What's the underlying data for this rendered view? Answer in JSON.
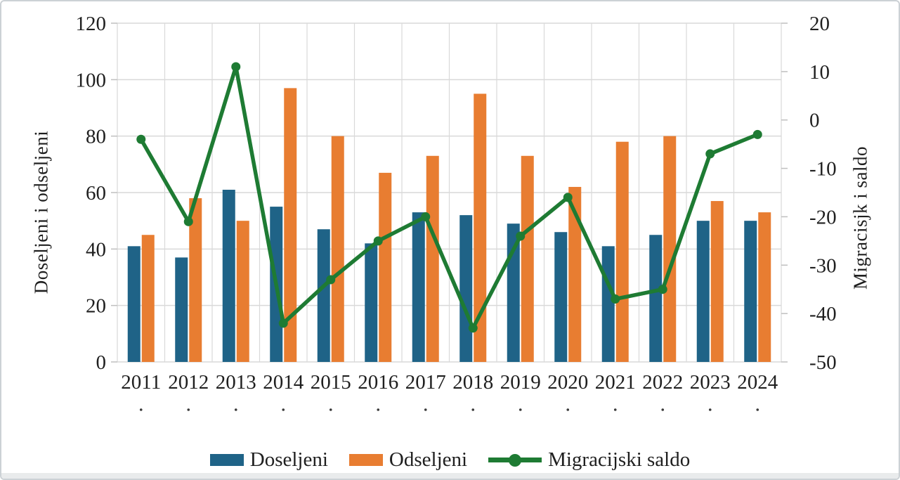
{
  "chart_data": {
    "type": "combo-bar-line",
    "categories": [
      "2011",
      "2012",
      "2013",
      "2014",
      "2015",
      "2016",
      "2017",
      "2018",
      "2019",
      "2020",
      "2021",
      "2022",
      "2023",
      "2024"
    ],
    "series": [
      {
        "name": "Doseljeni",
        "type": "bar",
        "axis": "left",
        "color": "#1F6387",
        "values": [
          41,
          37,
          61,
          55,
          47,
          42,
          53,
          52,
          49,
          46,
          41,
          45,
          50,
          50
        ]
      },
      {
        "name": "Odseljeni",
        "type": "bar",
        "axis": "left",
        "color": "#E87D31",
        "values": [
          45,
          58,
          50,
          97,
          80,
          67,
          73,
          95,
          73,
          62,
          78,
          80,
          57,
          53
        ]
      },
      {
        "name": "Migracijski saldo",
        "type": "line",
        "axis": "right",
        "color": "#1E7B33",
        "values": [
          -4,
          -21,
          11,
          -42,
          -33,
          -25,
          -20,
          -43,
          -24,
          -16,
          -37,
          -35,
          -7,
          -3
        ]
      }
    ],
    "left_axis": {
      "title": "Doseljeni i odseljeni",
      "min": 0,
      "max": 120,
      "step": 20,
      "ticks": [
        0,
        20,
        40,
        60,
        80,
        100,
        120
      ]
    },
    "right_axis": {
      "title": "Migracisjk i saldo",
      "min": -50,
      "max": 20,
      "step": 10,
      "ticks": [
        -50,
        -40,
        -30,
        -20,
        -10,
        0,
        10,
        20
      ]
    },
    "x_axis": {
      "sub_label_row": {
        "present": true,
        "symbol": "."
      }
    },
    "grid": {
      "horizontal": true,
      "vertical": true,
      "color": "#D9D9D9"
    },
    "legend_position": "bottom",
    "text_color": "#1F1F1F"
  }
}
